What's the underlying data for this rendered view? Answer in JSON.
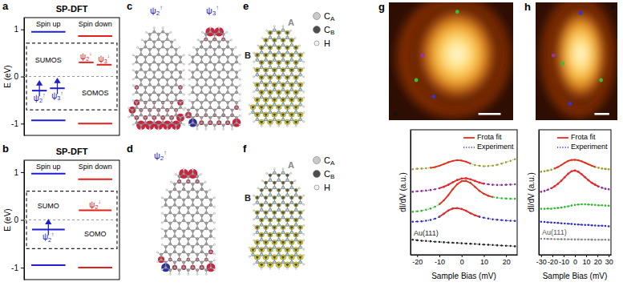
{
  "chart_data": [
    {
      "panel": "a",
      "type": "energy_levels",
      "title": "SP-DFT",
      "ylabel": "E (eV)",
      "ylim": [
        -1.25,
        1.25
      ],
      "yticks": [
        -1,
        0,
        1
      ],
      "reference_line": 0,
      "series": [
        {
          "name": "Spin up",
          "color": "#1f1fd1",
          "values": [
            0.95,
            -0.3,
            -0.25,
            -0.93
          ],
          "labels": [
            null,
            "ψ2↑",
            "ψ3↑",
            null
          ],
          "occupied": [
            false,
            true,
            true,
            false
          ]
        },
        {
          "name": "Spin down",
          "color": "#e3201b",
          "values": [
            0.86,
            0.3,
            0.25,
            -1.0
          ],
          "labels": [
            null,
            "ψ2↓",
            "ψ3↓",
            null
          ],
          "occupied": [
            false,
            false,
            false,
            false
          ]
        }
      ],
      "annotations": [
        "SUMOS",
        "SOMOS"
      ]
    },
    {
      "panel": "b",
      "type": "energy_levels",
      "title": "SP-DFT",
      "ylabel": "E (eV)",
      "ylim": [
        -1.25,
        1.25
      ],
      "yticks": [
        -1,
        0,
        1
      ],
      "reference_line": 0,
      "series": [
        {
          "name": "Spin up",
          "color": "#1f1fd1",
          "values": [
            0.97,
            -0.2,
            -0.95
          ],
          "labels": [
            null,
            "ψ2↑",
            null
          ],
          "occupied": [
            false,
            true,
            false
          ]
        },
        {
          "name": "Spin down",
          "color": "#e3201b",
          "values": [
            0.85,
            0.2,
            -1.0
          ],
          "labels": [
            null,
            "ψ2↓",
            null
          ],
          "occupied": [
            false,
            false,
            false
          ]
        }
      ],
      "annotations": [
        "SUMO",
        "SOMO"
      ]
    },
    {
      "panel": "g",
      "type": "line",
      "xlabel": "Sample Bias (mV)",
      "ylabel": "dI/dV (a.u.)",
      "x": [
        -22,
        -20,
        -18,
        -16,
        -14,
        -12,
        -10,
        -8,
        -6,
        -4,
        -2,
        0,
        2,
        4,
        6,
        8,
        10,
        12,
        14,
        16,
        18,
        20,
        22,
        24
      ],
      "xlim": [
        -23,
        25
      ],
      "xticks": [
        -20,
        -10,
        0,
        10,
        20
      ],
      "ylim": [
        0,
        12.5
      ],
      "tick_labels": "x",
      "legend": "upper right",
      "legend_entries": [
        {
          "name": "Frota fit",
          "color": "#ee2a1f",
          "line_style": "solid"
        },
        {
          "name": "Experiment",
          "color": "#2c2cc8",
          "line_style": "dotted"
        }
      ],
      "series": [
        {
          "color": "#9b9b2f",
          "line_style": "dotted",
          "marker": "circle",
          "values": [
            8.55,
            8.6,
            8.62,
            8.65,
            8.7,
            8.78,
            8.9,
            9.08,
            9.25,
            9.38,
            9.45,
            9.42,
            9.3,
            9.12,
            8.98,
            8.9,
            8.86,
            8.88,
            8.92,
            9.0,
            9.12,
            9.25,
            9.4,
            9.55
          ]
        },
        {
          "color": "#ee2a1f",
          "line_style": "solid",
          "values": [
            null,
            null,
            null,
            null,
            8.68,
            8.77,
            8.9,
            9.06,
            9.24,
            9.38,
            9.46,
            9.43,
            9.3,
            9.13,
            null,
            null,
            null,
            null,
            null,
            null,
            null,
            null,
            null,
            null
          ]
        },
        {
          "color": "#8e2aa0",
          "line_style": "dotted",
          "marker": "circle",
          "values": [
            6.3,
            6.35,
            6.38,
            6.42,
            6.48,
            6.55,
            6.65,
            6.8,
            7.0,
            7.25,
            7.48,
            7.62,
            7.65,
            7.55,
            7.38,
            7.22,
            7.12,
            7.05,
            7.0,
            6.98,
            6.98,
            7.0,
            7.02,
            7.05
          ]
        },
        {
          "color": "#ee2a1f",
          "line_style": "solid",
          "values": [
            null,
            null,
            null,
            null,
            null,
            null,
            6.66,
            6.8,
            7.0,
            7.24,
            7.47,
            7.62,
            7.66,
            7.55,
            7.38,
            7.22,
            7.11,
            null,
            null,
            null,
            null,
            null,
            null,
            null
          ]
        },
        {
          "color": "#2eb82e",
          "line_style": "dotted",
          "marker": "circle",
          "values": [
            4.3,
            4.35,
            4.4,
            4.5,
            4.62,
            4.8,
            5.05,
            5.45,
            5.95,
            6.55,
            7.05,
            7.35,
            7.4,
            7.2,
            6.8,
            6.4,
            6.1,
            5.9,
            5.78,
            5.7,
            5.65,
            5.62,
            5.6,
            5.6
          ]
        },
        {
          "color": "#ee2a1f",
          "line_style": "solid",
          "values": [
            null,
            null,
            null,
            null,
            null,
            null,
            5.05,
            5.44,
            5.96,
            6.56,
            7.06,
            7.36,
            7.38,
            7.18,
            6.8,
            6.4,
            6.1,
            5.9,
            5.77,
            null,
            null,
            null,
            null,
            null
          ]
        },
        {
          "color": "#2c2cc8",
          "line_style": "dotted",
          "marker": "circle",
          "values": [
            3.3,
            3.32,
            3.35,
            3.4,
            3.48,
            3.6,
            3.8,
            4.1,
            4.42,
            4.62,
            4.66,
            4.58,
            4.4,
            4.15,
            3.95,
            3.8,
            3.7,
            3.62,
            3.55,
            3.5,
            3.46,
            3.42,
            3.4,
            3.38
          ]
        },
        {
          "color": "#ee2a1f",
          "line_style": "solid",
          "values": [
            null,
            null,
            null,
            null,
            null,
            null,
            3.8,
            4.1,
            4.42,
            4.63,
            4.66,
            4.58,
            4.4,
            4.16,
            3.95,
            3.8,
            null,
            null,
            null,
            null,
            null,
            null,
            null,
            null
          ]
        },
        {
          "name": "Au(111)",
          "color": "#222222",
          "line_style": "dotted",
          "marker": "circle",
          "values": [
            1.5,
            1.45,
            1.4,
            1.38,
            1.35,
            1.3,
            1.28,
            1.25,
            1.22,
            1.2,
            1.18,
            1.15,
            1.12,
            1.1,
            1.08,
            1.05,
            1.02,
            1.0,
            0.98,
            0.95,
            0.92,
            0.9,
            0.88,
            0.85
          ]
        }
      ]
    },
    {
      "panel": "h",
      "type": "line",
      "xlabel": "Sample Bias (mV)",
      "ylabel": "dI/dV (a.u.)",
      "x": [
        -30,
        -27,
        -24,
        -21,
        -18,
        -15,
        -12,
        -9,
        -6,
        -3,
        0,
        3,
        6,
        9,
        12,
        15,
        18,
        21,
        24,
        27,
        30
      ],
      "xlim": [
        -32,
        32
      ],
      "xticks": [
        -30,
        -20,
        -10,
        0,
        10,
        20,
        30
      ],
      "ylim": [
        0,
        12.5
      ],
      "tick_labels": "x",
      "legend": "upper right",
      "legend_entries": [
        {
          "name": "Frota fit",
          "color": "#ee2a1f",
          "line_style": "solid"
        },
        {
          "name": "Experiment",
          "color": "#2c2cc8",
          "line_style": "dotted"
        }
      ],
      "series": [
        {
          "color": "#9b9b2f",
          "line_style": "dotted",
          "marker": "circle",
          "values": [
            8.3,
            8.35,
            8.42,
            8.5,
            8.62,
            8.78,
            8.98,
            9.2,
            9.38,
            9.48,
            9.5,
            9.45,
            9.35,
            9.2,
            9.05,
            8.9,
            8.78,
            8.7,
            8.62,
            8.58,
            8.55
          ]
        },
        {
          "color": "#ee2a1f",
          "line_style": "solid",
          "values": [
            null,
            null,
            null,
            null,
            8.62,
            8.78,
            8.98,
            9.2,
            9.38,
            9.48,
            9.5,
            9.45,
            9.34,
            9.2,
            9.05,
            8.9,
            8.78,
            null,
            null,
            null,
            null
          ]
        },
        {
          "color": "#8e2aa0",
          "line_style": "dotted",
          "marker": "circle",
          "values": [
            6.3,
            6.38,
            6.5,
            6.65,
            6.85,
            7.1,
            7.4,
            7.75,
            8.1,
            8.35,
            8.42,
            8.3,
            8.05,
            7.75,
            7.45,
            7.2,
            7.0,
            6.82,
            6.7,
            6.6,
            6.55
          ]
        },
        {
          "color": "#ee2a1f",
          "line_style": "solid",
          "values": [
            null,
            null,
            null,
            6.64,
            6.85,
            7.1,
            7.4,
            7.76,
            8.1,
            8.35,
            8.43,
            8.3,
            8.05,
            7.75,
            7.45,
            7.2,
            7.0,
            6.82,
            null,
            null,
            null
          ]
        },
        {
          "color": "#2eb82e",
          "line_style": "dotted",
          "marker": "circle",
          "values": [
            4.6,
            4.6,
            4.62,
            4.6,
            4.65,
            4.68,
            4.72,
            4.78,
            4.85,
            4.92,
            4.98,
            5.02,
            5.05,
            5.05,
            5.02,
            5.0,
            4.98,
            4.95,
            4.95,
            4.92,
            4.9
          ]
        },
        {
          "color": "#2c2cc8",
          "line_style": "dotted",
          "marker": "circle",
          "values": [
            3.3,
            3.28,
            3.25,
            3.22,
            3.2,
            3.18,
            3.15,
            3.12,
            3.1,
            3.08,
            3.05,
            3.02,
            3.0,
            2.98,
            2.98,
            2.95,
            2.92,
            2.9,
            2.9,
            2.88,
            2.85
          ]
        },
        {
          "name": "Au(111)",
          "color": "#888888",
          "line_style": "dotted",
          "marker": "circle",
          "values": [
            1.6,
            1.6,
            1.58,
            1.58,
            1.56,
            1.56,
            1.55,
            1.55,
            1.54,
            1.54,
            1.53,
            1.53,
            1.52,
            1.52,
            1.52,
            1.51,
            1.5,
            1.5,
            1.5,
            1.5,
            1.49
          ]
        }
      ]
    }
  ],
  "molecules": [
    {
      "panel": "c",
      "type": "orbital",
      "labels": [
        "ψ2↑",
        "ψ3↑"
      ]
    },
    {
      "panel": "d",
      "type": "orbital",
      "labels": [
        "ψ2↑"
      ]
    },
    {
      "panel": "e",
      "type": "spin_density",
      "site_labels": [
        "A",
        "B"
      ],
      "atom_key": [
        "CA",
        "CB",
        "H"
      ]
    },
    {
      "panel": "f",
      "type": "spin_density",
      "site_labels": [
        "A",
        "B"
      ],
      "atom_key": [
        "CA",
        "CB",
        "H"
      ]
    }
  ]
}
